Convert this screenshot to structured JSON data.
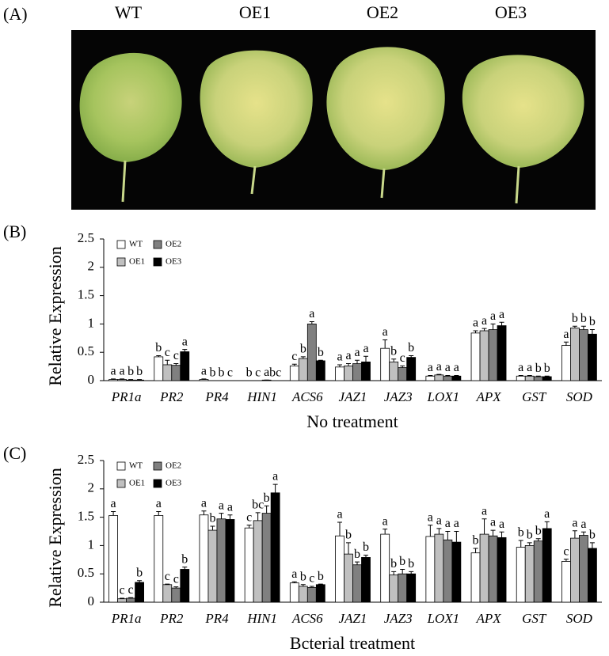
{
  "panel_a": {
    "panel_label": "(A)",
    "columns": [
      "WT",
      "OE1",
      "OE2",
      "OE3"
    ]
  },
  "chart_data": [
    {
      "type": "bar",
      "panel_label": "(B)",
      "x_label": "No treatment",
      "y_label": "Relative Expression",
      "categories": [
        "PR1a",
        "PR2",
        "PR4",
        "HIN1",
        "ACS6",
        "JAZ1",
        "JAZ3",
        "LOX1",
        "APX",
        "GST",
        "SOD"
      ],
      "ylim": [
        0,
        2.5
      ],
      "yticks": [
        0,
        0.5,
        1,
        1.5,
        2,
        2.5
      ],
      "legend": "upper-left",
      "series": [
        {
          "name": "WT",
          "color": "#ffffff",
          "values": [
            0.02,
            0.42,
            0.02,
            0,
            0.26,
            0.24,
            0.57,
            0.08,
            0.84,
            0.08,
            0.62
          ],
          "errors": [
            0.01,
            0.02,
            0.01,
            0,
            0.03,
            0.04,
            0.15,
            0.01,
            0.04,
            0.01,
            0.06
          ],
          "letters": [
            "a",
            "b",
            "a",
            "b",
            "c",
            "a",
            "a",
            "a",
            "a",
            "a",
            "a"
          ]
        },
        {
          "name": "OE1",
          "color": "#c0c0c0",
          "values": [
            0.02,
            0.28,
            0,
            0,
            0.39,
            0.26,
            0.33,
            0.1,
            0.88,
            0.08,
            0.93
          ],
          "errors": [
            0.01,
            0.08,
            0,
            0,
            0.03,
            0.04,
            0.05,
            0.01,
            0.04,
            0.01,
            0.03
          ],
          "letters": [
            "a",
            "c",
            "b",
            "c",
            "b",
            "a",
            "b",
            "a",
            "a",
            "a",
            "b"
          ]
        },
        {
          "name": "OE2",
          "color": "#808080",
          "values": [
            0.01,
            0.27,
            0,
            0.01,
            1.0,
            0.3,
            0.23,
            0.08,
            0.9,
            0.07,
            0.9
          ],
          "errors": [
            0.01,
            0.03,
            0,
            0,
            0.04,
            0.06,
            0.03,
            0.01,
            0.1,
            0.01,
            0.06
          ],
          "letters": [
            "b",
            "c",
            "b",
            "a",
            "a",
            "a",
            "c",
            "a",
            "a",
            "b",
            "b"
          ]
        },
        {
          "name": "OE3",
          "color": "#000000",
          "values": [
            0.01,
            0.51,
            0,
            0,
            0.35,
            0.33,
            0.41,
            0.08,
            0.97,
            0.07,
            0.82
          ],
          "errors": [
            0.01,
            0.04,
            0,
            0,
            0.01,
            0.1,
            0.03,
            0.01,
            0.06,
            0.01,
            0.08
          ],
          "letters": [
            "b",
            "a",
            "c",
            "bc",
            "b",
            "a",
            "b",
            "a",
            "a",
            "b",
            "b"
          ]
        }
      ]
    },
    {
      "type": "bar",
      "panel_label": "(C)",
      "x_label": "Bcterial treatment",
      "y_label": "Relative Expression",
      "categories": [
        "PR1a",
        "PR2",
        "PR4",
        "HIN1",
        "ACS6",
        "JAZ1",
        "JAZ3",
        "LOX1",
        "APX",
        "GST",
        "SOD"
      ],
      "ylim": [
        0,
        2.5
      ],
      "yticks": [
        0,
        0.5,
        1,
        1.5,
        2,
        2.5
      ],
      "legend": "upper-left",
      "series": [
        {
          "name": "WT",
          "color": "#ffffff",
          "values": [
            1.53,
            1.53,
            1.54,
            1.31,
            0.34,
            1.17,
            1.2,
            1.16,
            0.87,
            0.97,
            0.72
          ],
          "errors": [
            0.07,
            0.07,
            0.07,
            0.05,
            0.02,
            0.24,
            0.09,
            0.2,
            0.08,
            0.12,
            0.04
          ],
          "letters": [
            "a",
            "a",
            "a",
            "c",
            "a",
            "a",
            "a",
            "a",
            "b",
            "b",
            "c"
          ]
        },
        {
          "name": "OE1",
          "color": "#c0c0c0",
          "values": [
            0.06,
            0.31,
            1.27,
            1.44,
            0.28,
            0.85,
            0.48,
            1.2,
            1.2,
            1.0,
            1.13
          ],
          "errors": [
            0.01,
            0.01,
            0.07,
            0.14,
            0.03,
            0.2,
            0.06,
            0.1,
            0.27,
            0.05,
            0.13
          ],
          "letters": [
            "c",
            "c",
            "b",
            "bc",
            "b",
            "b",
            "b",
            "a",
            "a",
            "b",
            "a"
          ]
        },
        {
          "name": "OE2",
          "color": "#808080",
          "values": [
            0.07,
            0.25,
            1.47,
            1.57,
            0.26,
            0.66,
            0.5,
            1.1,
            1.17,
            1.08,
            1.18
          ],
          "errors": [
            0.01,
            0.02,
            0.1,
            0.13,
            0.02,
            0.05,
            0.08,
            0.15,
            0.1,
            0.04,
            0.06
          ],
          "letters": [
            "c",
            "c",
            "a",
            "b",
            "c",
            "b",
            "b",
            "a",
            "a",
            "b",
            "a"
          ]
        },
        {
          "name": "OE3",
          "color": "#000000",
          "values": [
            0.35,
            0.58,
            1.46,
            1.93,
            0.31,
            0.79,
            0.5,
            1.06,
            1.14,
            1.3,
            0.95
          ],
          "errors": [
            0.03,
            0.04,
            0.08,
            0.15,
            0.01,
            0.04,
            0.04,
            0.19,
            0.1,
            0.12,
            0.1
          ],
          "letters": [
            "b",
            "b",
            "a",
            "a",
            "b",
            "b",
            "b",
            "a",
            "a",
            "a",
            "b"
          ]
        }
      ]
    }
  ]
}
